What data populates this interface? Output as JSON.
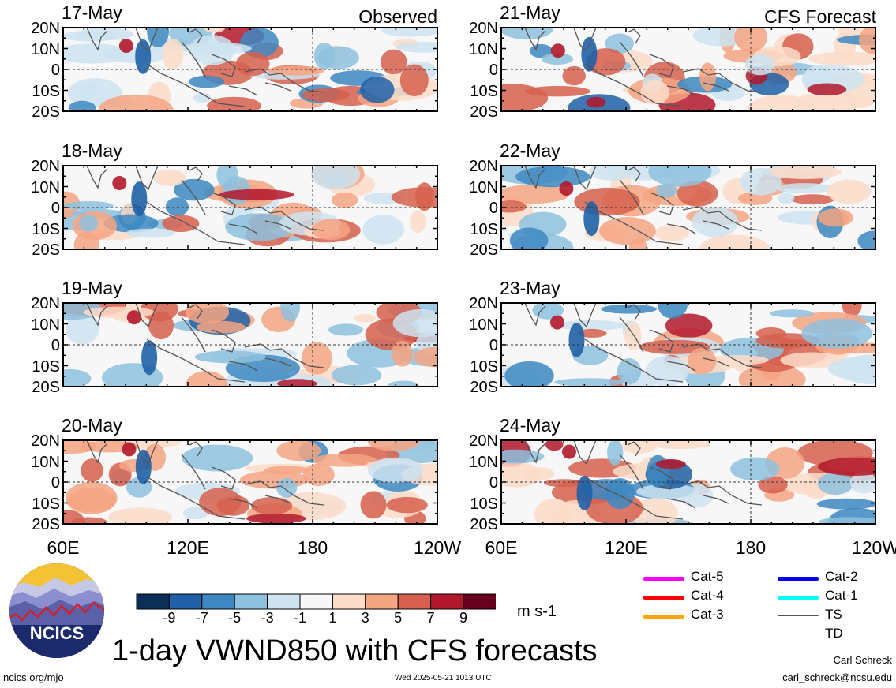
{
  "title": "1-day VWND850 with CFS forecasts",
  "footer": {
    "site": "ncics.org/mjo",
    "timestamp": "Wed 2025-05-21 1013 UTC",
    "author": "Carl Schreck",
    "email": "carl_schreck@ncsu.edu"
  },
  "logo": {
    "text": "NCICS"
  },
  "columns": {
    "observed_label": "Observed",
    "forecast_label": "CFS Forecast"
  },
  "colorbar": {
    "units": "m s-1",
    "tick_labels": [
      "-9",
      "-7",
      "-5",
      "-3",
      "-1",
      "1",
      "3",
      "5",
      "7",
      "9"
    ],
    "colors": [
      "#0b2f57",
      "#1f60a6",
      "#3d88c2",
      "#8ec1de",
      "#cde3f0",
      "#f7f7f7",
      "#fbdcc8",
      "#f4a582",
      "#d6604d",
      "#b2182b",
      "#67001f"
    ]
  },
  "legend": [
    {
      "label": "Cat-5",
      "color": "#ff00ff"
    },
    {
      "label": "Cat-4",
      "color": "#ff0000"
    },
    {
      "label": "Cat-3",
      "color": "#ffa500"
    },
    {
      "label": "Cat-2",
      "color": "#0000ff"
    },
    {
      "label": "Cat-1",
      "color": "#00ffff"
    },
    {
      "label": "TS",
      "color": "#555555"
    },
    {
      "label": "TD",
      "color": "#aaaaaa"
    }
  ],
  "chart_data": {
    "type": "heatmap",
    "variable": "VWND850",
    "lat_labels": [
      "20N",
      "10N",
      "0",
      "10S",
      "20S"
    ],
    "lon_labels": [
      "60E",
      "120E",
      "180",
      "120W"
    ],
    "xlim": [
      "60E",
      "120W"
    ],
    "ylim": [
      "20S",
      "20N"
    ],
    "panels": [
      {
        "date": "17-May",
        "kind": "observed"
      },
      {
        "date": "18-May",
        "kind": "observed"
      },
      {
        "date": "19-May",
        "kind": "observed"
      },
      {
        "date": "20-May",
        "kind": "observed"
      },
      {
        "date": "21-May",
        "kind": "forecast"
      },
      {
        "date": "22-May",
        "kind": "forecast"
      },
      {
        "date": "23-May",
        "kind": "forecast"
      },
      {
        "date": "24-May",
        "kind": "forecast"
      }
    ]
  }
}
